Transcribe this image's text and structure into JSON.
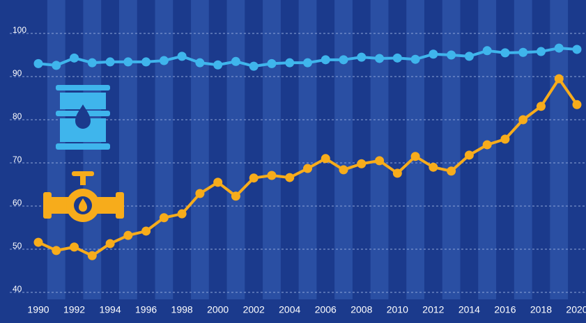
{
  "chart_data": {
    "type": "line",
    "x": [
      1990,
      1991,
      1992,
      1993,
      1994,
      1995,
      1996,
      1997,
      1998,
      1999,
      2000,
      2001,
      2002,
      2003,
      2004,
      2005,
      2006,
      2007,
      2008,
      2009,
      2010,
      2011,
      2012,
      2013,
      2014,
      2015,
      2016,
      2017,
      2018,
      2019,
      2020
    ],
    "series": [
      {
        "color": "#3fb5ec",
        "values": [
          93.0,
          92.6,
          94.3,
          93.2,
          93.4,
          93.4,
          93.4,
          93.7,
          94.7,
          93.2,
          92.7,
          93.5,
          92.4,
          93.0,
          93.2,
          93.2,
          93.9,
          93.9,
          94.5,
          94.2,
          94.3,
          94.0,
          95.2,
          95.0,
          94.7,
          96.0,
          95.5,
          95.6,
          95.8,
          96.6,
          96.3
        ]
      },
      {
        "color": "#f7ac1b",
        "values": [
          51.6,
          49.7,
          50.5,
          48.5,
          51.3,
          53.2,
          54.2,
          57.3,
          58.2,
          62.9,
          65.5,
          62.3,
          66.5,
          67.1,
          66.6,
          68.7,
          71.0,
          68.4,
          69.8,
          70.5,
          67.6,
          71.5,
          69.0,
          68.1,
          71.8,
          74.2,
          75.5,
          80.0,
          83.1,
          89.5,
          83.5
        ]
      }
    ],
    "xlim": [
      1990,
      2020
    ],
    "xticks": [
      1990,
      1992,
      1994,
      1996,
      1998,
      2000,
      2002,
      2004,
      2006,
      2008,
      2010,
      2012,
      2014,
      2016,
      2018,
      2020
    ],
    "ylim": [
      37,
      103
    ],
    "yticks": [
      40,
      50,
      60,
      70,
      80,
      90,
      100
    ],
    "grid": true
  }
}
